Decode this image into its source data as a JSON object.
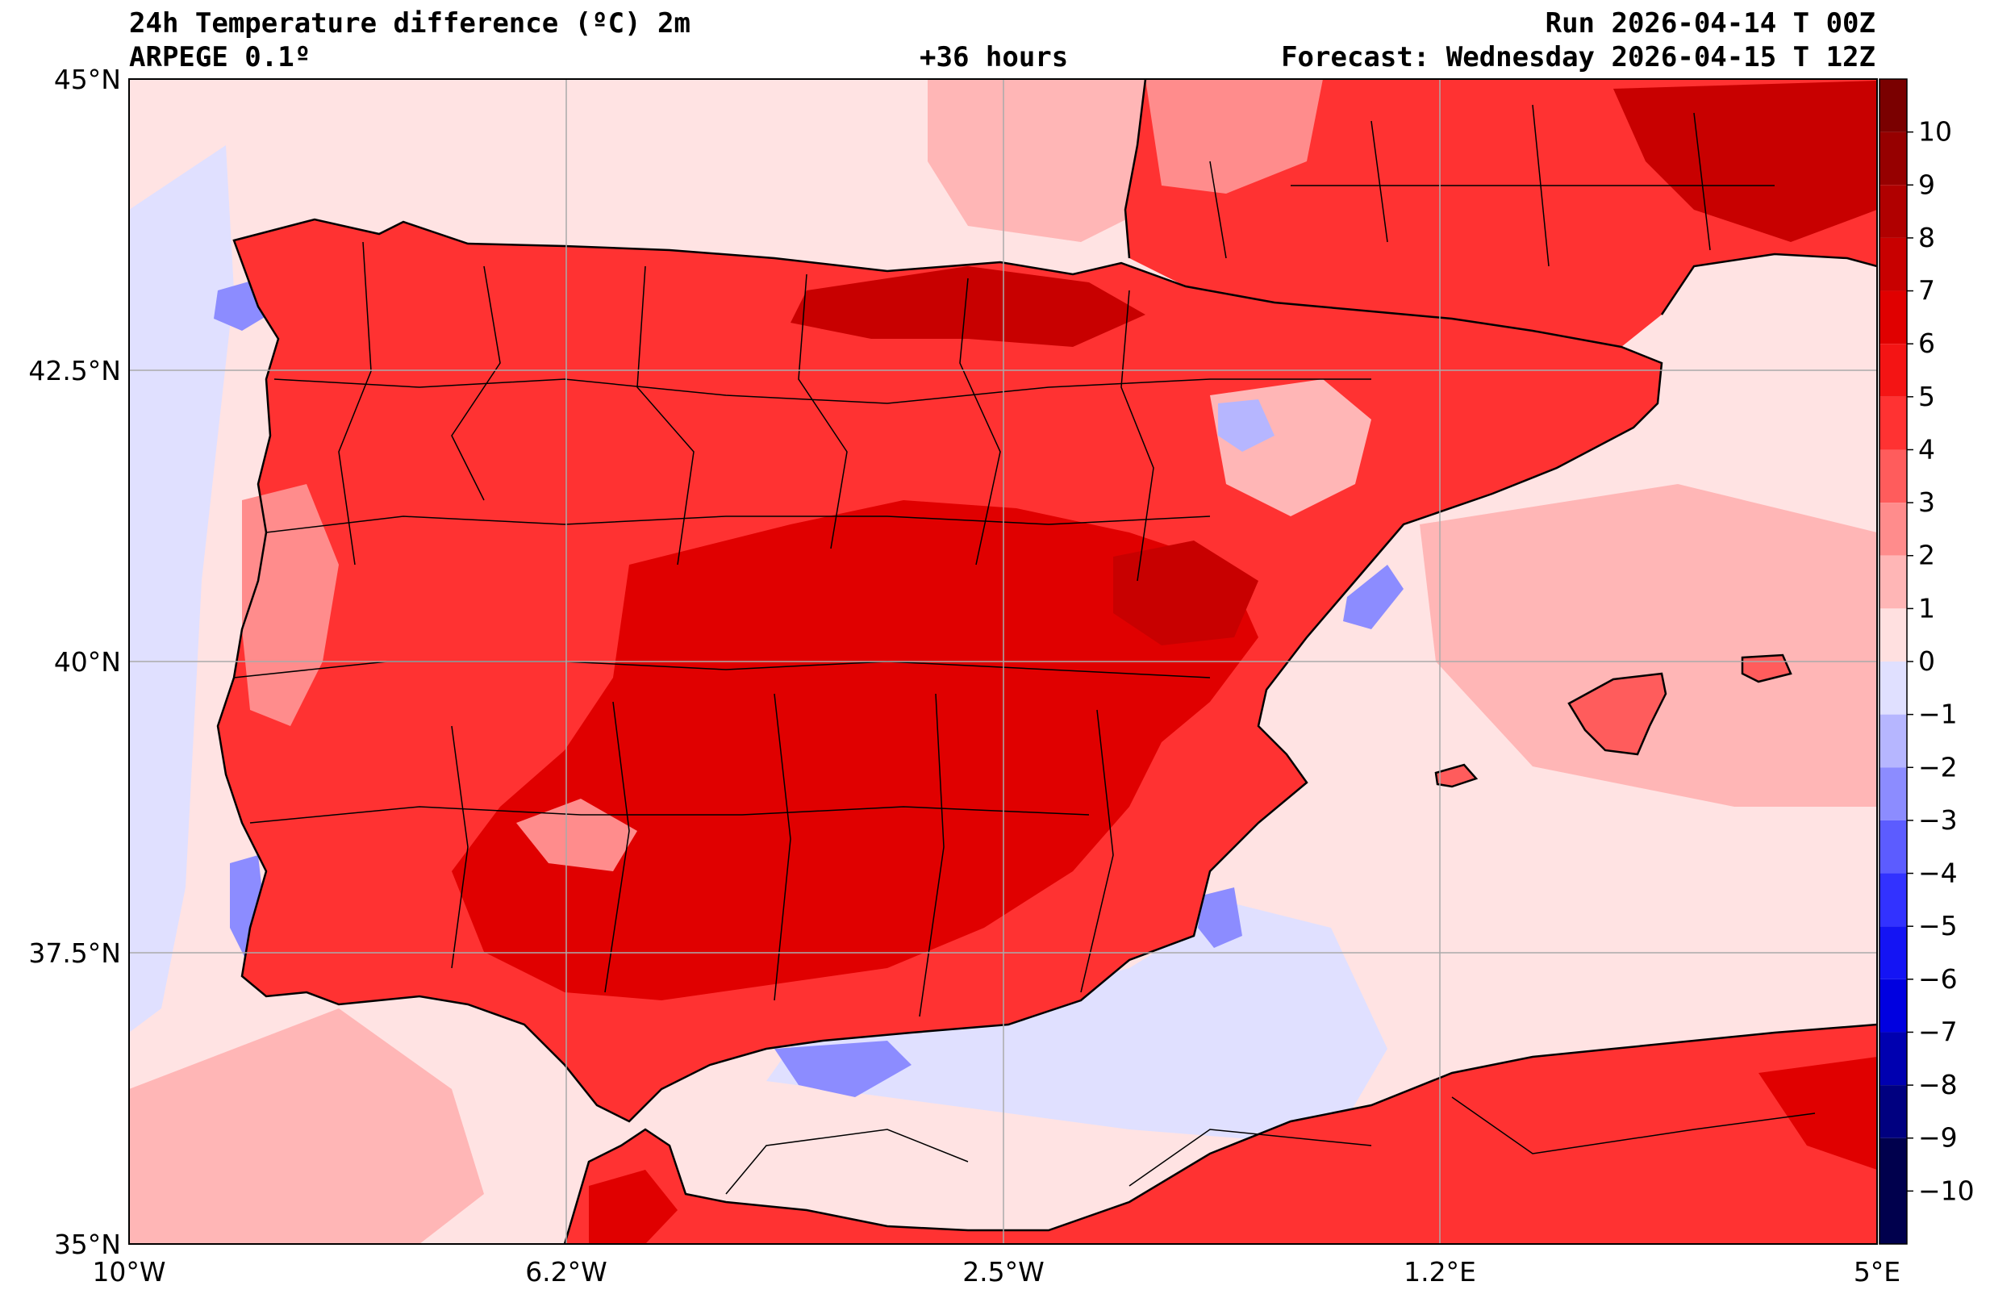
{
  "header": {
    "title": "24h Temperature difference (ºC) 2m",
    "model": "ARPEGE 0.1º",
    "lead_time": "+36 hours",
    "run": "Run 2026-04-14 T 00Z",
    "forecast": "Forecast: Wednesday 2026-04-15 T 12Z"
  },
  "axes": {
    "lat_labels": [
      "45°N",
      "42.5°N",
      "40°N",
      "37.5°N",
      "35°N"
    ],
    "lon_labels": [
      "10°W",
      "6.2°W",
      "2.5°W",
      "1.2°E",
      "5°E"
    ],
    "lat_values": [
      45,
      42.5,
      40,
      37.5,
      35
    ],
    "lon_values": [
      -10,
      -6.25,
      -2.5,
      1.25,
      5
    ],
    "lat_range": [
      35,
      45
    ],
    "lon_range": [
      -10,
      5
    ]
  },
  "colorbar": {
    "labels": [
      "10",
      "9",
      "8",
      "7",
      "6",
      "5",
      "4",
      "3",
      "2",
      "1",
      "0",
      "−1",
      "−2",
      "−3",
      "−4",
      "−5",
      "−6",
      "−7",
      "−8",
      "−9",
      "−10"
    ],
    "levels": [
      10,
      9,
      8,
      7,
      6,
      5,
      4,
      3,
      2,
      1,
      0,
      -1,
      -2,
      -3,
      -4,
      -5,
      -6,
      -7,
      -8,
      -9,
      -10
    ],
    "colors": [
      "#7a0000",
      "#960000",
      "#b00000",
      "#c80000",
      "#e00000",
      "#f41414",
      "#ff3232",
      "#ff5c5c",
      "#ff8c8c",
      "#ffb6b6",
      "#ffe0e0",
      "#e0e0ff",
      "#b6b6ff",
      "#8c8cff",
      "#5c5cff",
      "#3232ff",
      "#1414f4",
      "#0000e0",
      "#0000b0",
      "#000080",
      "#00004d"
    ]
  },
  "colors": {
    "sea": "#ffe3e3",
    "land_base": "#ff2a2a",
    "coast": "#000000",
    "grid": "#aaaaaa"
  }
}
